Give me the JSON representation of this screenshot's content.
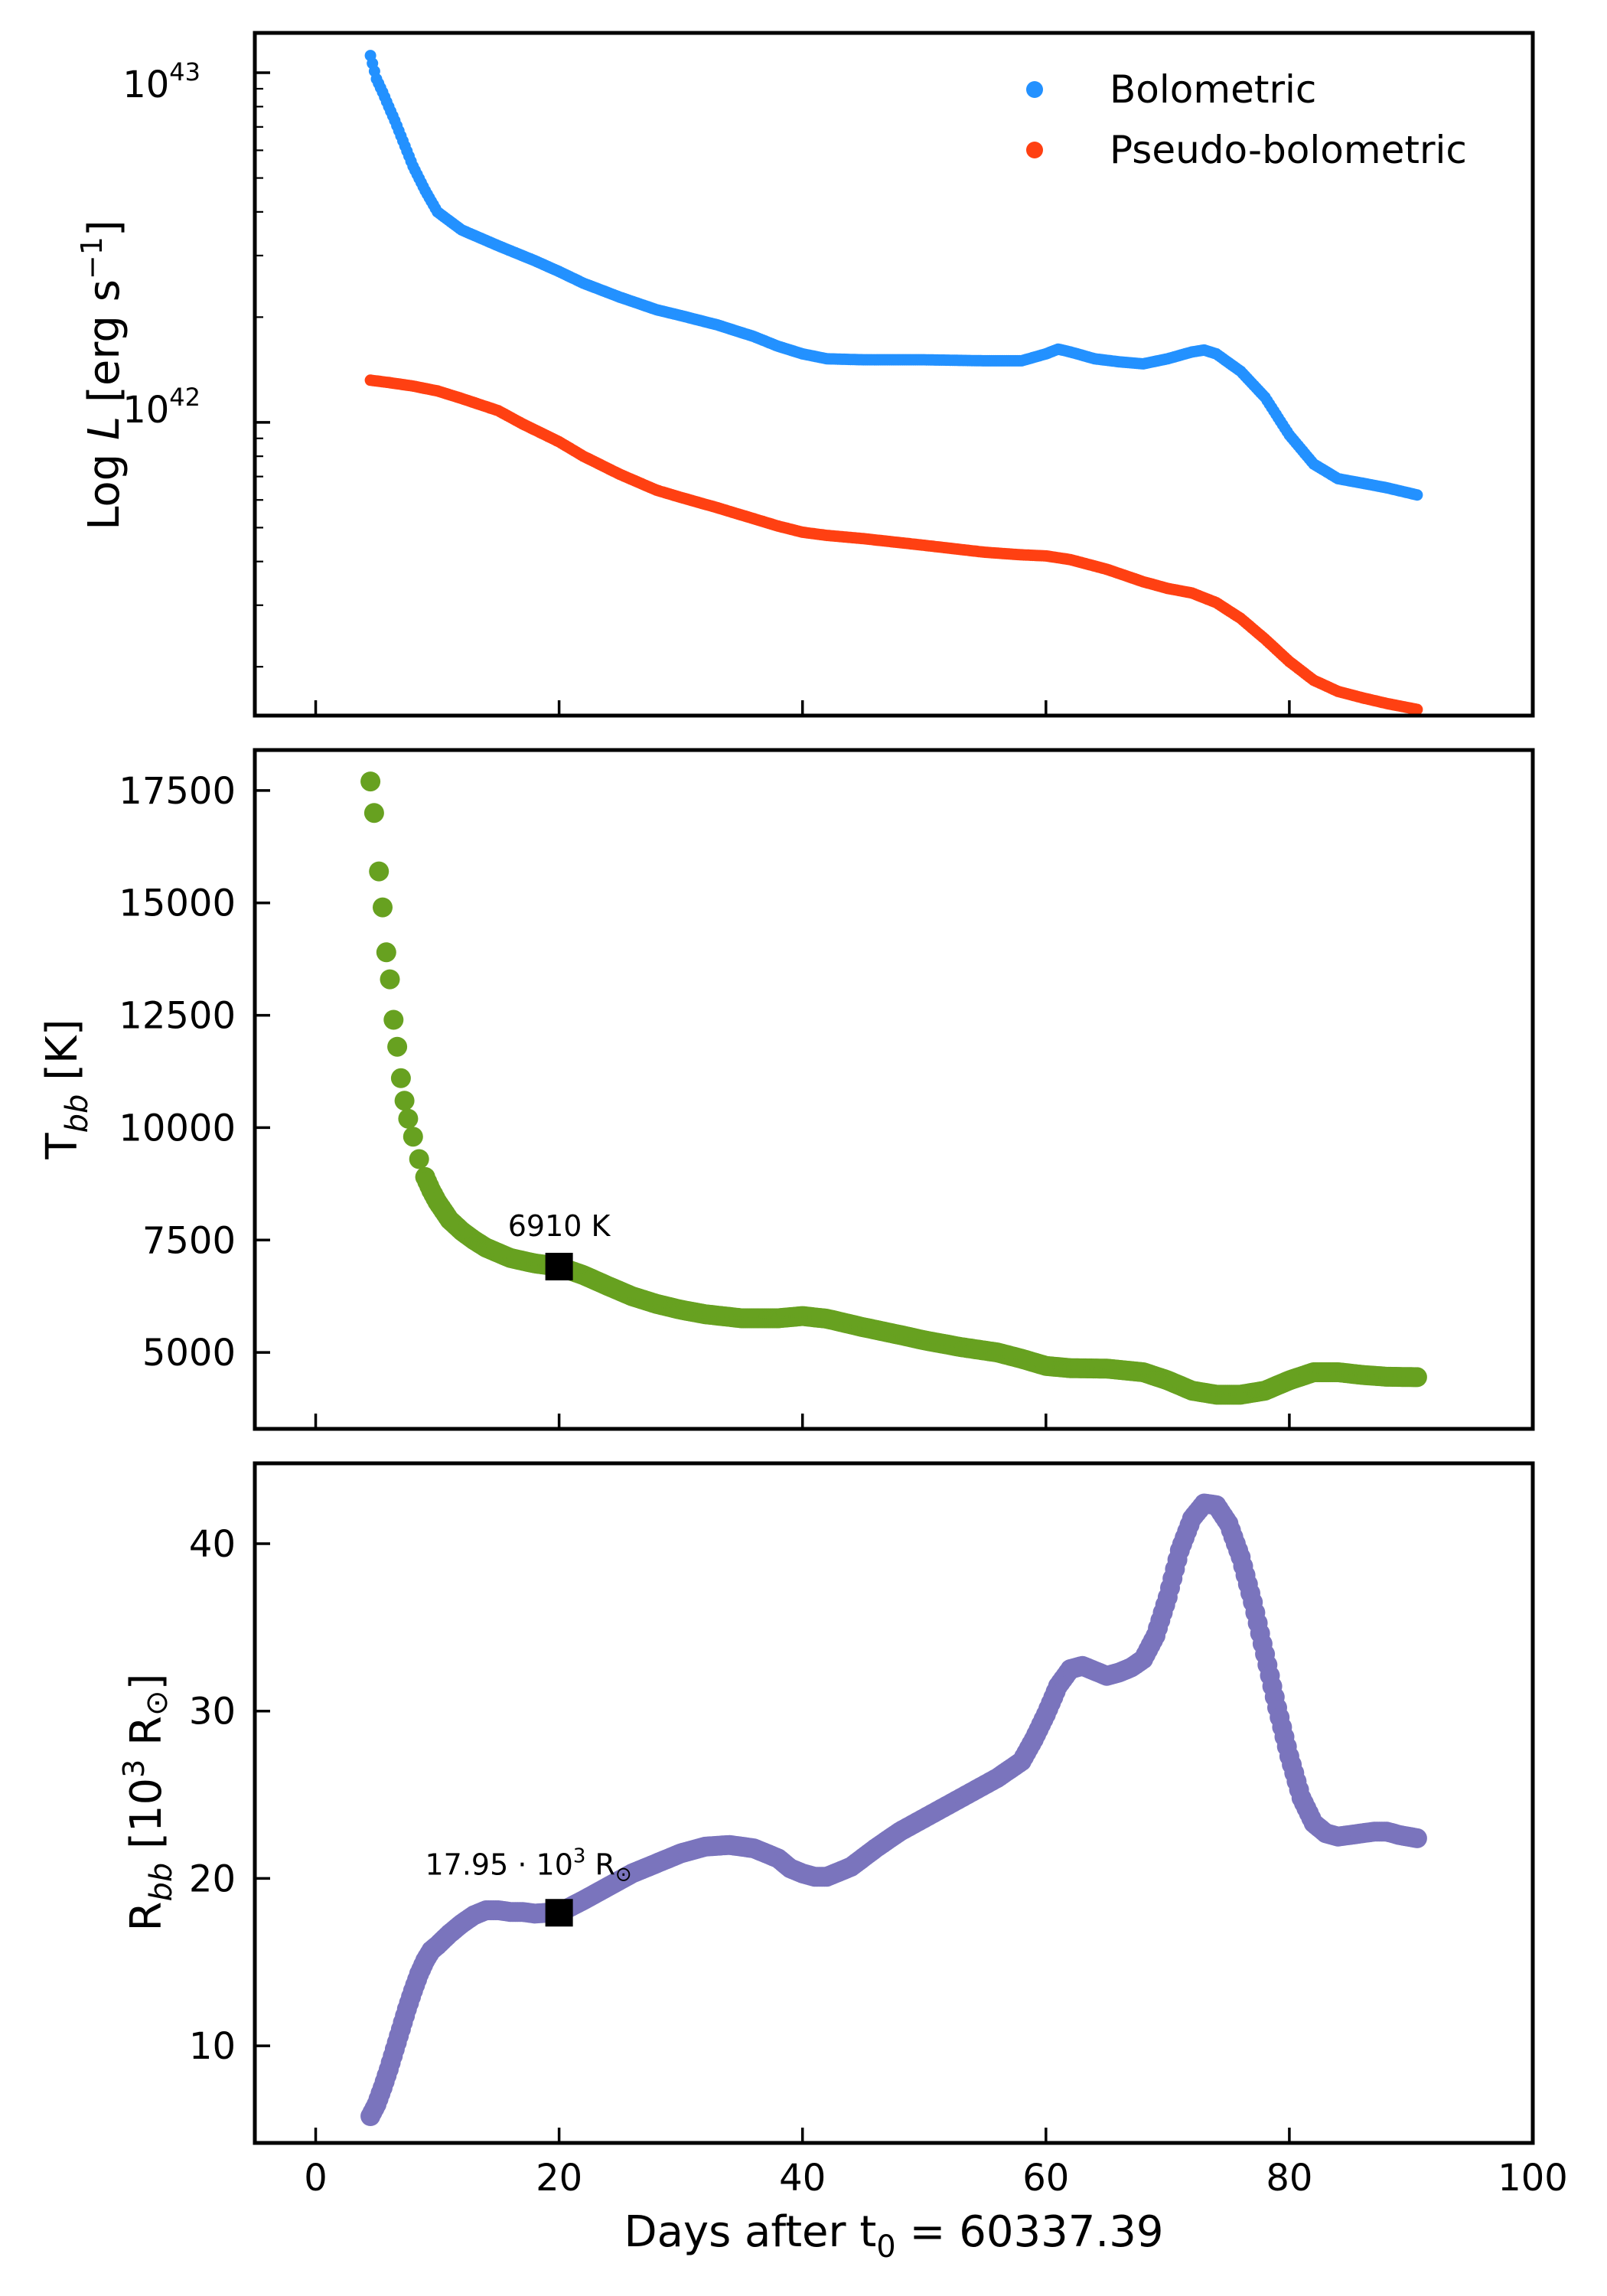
{
  "colors": {
    "bolometric": "#2391ff",
    "pseudo_bolometric": "#ff4012",
    "temperature": "#67a120",
    "radius": "#7a74bd",
    "marker": "#000000"
  },
  "chart_data": [
    {
      "id": "luminosity",
      "type": "scatter",
      "yscale": "log",
      "xlim": [
        -5,
        100
      ],
      "ylim": [
        1.45e+41,
        1.3e+43
      ],
      "ylabel": "Log L [erg s⁻¹]",
      "ylabel_parts": {
        "prefix": "Log ",
        "italic": "L",
        "unit": " [erg s",
        "sup": "−1",
        "close": "]"
      },
      "yticks": [
        {
          "value": 1e+42,
          "base": "10",
          "exp": "42"
        },
        {
          "value": 1e+43,
          "base": "10",
          "exp": "43"
        }
      ],
      "legend": {
        "location": "top-right",
        "entries": [
          "Bolometric",
          "Pseudo-bolometric"
        ]
      },
      "series": [
        {
          "name": "Bolometric",
          "x": [
            4.5,
            5.0,
            5.5,
            6.0,
            6.5,
            7.0,
            8.0,
            9.0,
            10.0,
            12.0,
            15.0,
            18.0,
            20.0,
            22.0,
            25.0,
            28.0,
            30.0,
            33.0,
            36.0,
            38.0,
            40.0,
            42.0,
            45.0,
            50.0,
            55.0,
            58.0,
            60.0,
            61.0,
            62.0,
            64.0,
            66.0,
            68.0,
            70.0,
            72.0,
            73.0,
            74.0,
            76.0,
            78.0,
            80.0,
            82.0,
            84.0,
            86.0,
            88.0,
            90.5
          ],
          "y": [
            1.12e+43,
            9.6e+42,
            8.8e+42,
            8e+42,
            7.3e+42,
            6.6e+42,
            5.4e+42,
            4.6e+42,
            4e+42,
            3.55e+42,
            3.2e+42,
            2.9e+42,
            2.7e+42,
            2.5e+42,
            2.28e+42,
            2.1e+42,
            2.02e+42,
            1.9e+42,
            1.76e+42,
            1.65e+42,
            1.57e+42,
            1.52e+42,
            1.51e+42,
            1.51e+42,
            1.5e+42,
            1.5e+42,
            1.57e+42,
            1.62e+42,
            1.59e+42,
            1.52e+42,
            1.49e+42,
            1.47e+42,
            1.52e+42,
            1.59e+42,
            1.61e+42,
            1.57e+42,
            1.4e+42,
            1.18e+42,
            9.2e+41,
            7.6e+41,
            6.9e+41,
            6.7e+41,
            6.5e+41,
            6.2e+41
          ]
        },
        {
          "name": "Pseudo-bolometric",
          "x": [
            4.5,
            6.0,
            8.0,
            10.0,
            12.0,
            15.0,
            17.0,
            20.0,
            22.0,
            25.0,
            28.0,
            30.0,
            33.0,
            36.0,
            38.0,
            40.0,
            42.0,
            45.0,
            50.0,
            55.0,
            58.0,
            60.0,
            62.0,
            65.0,
            68.0,
            70.0,
            72.0,
            74.0,
            76.0,
            78.0,
            80.0,
            82.0,
            84.0,
            86.0,
            88.0,
            90.5
          ],
          "y": [
            1.32e+42,
            1.3e+42,
            1.27e+42,
            1.23e+42,
            1.17e+42,
            1.08e+42,
            9.9e+41,
            8.8e+41,
            8e+41,
            7.1e+41,
            6.4e+41,
            6.1e+41,
            5.7e+41,
            5.3e+41,
            5.05e+41,
            4.85e+41,
            4.75e+41,
            4.65e+41,
            4.45e+41,
            4.25e+41,
            4.18e+41,
            4.15e+41,
            4.05e+41,
            3.8e+41,
            3.5e+41,
            3.35e+41,
            3.25e+41,
            3.05e+41,
            2.75e+41,
            2.4e+41,
            2.07e+41,
            1.83e+41,
            1.7e+41,
            1.63e+41,
            1.57e+41,
            1.51e+41
          ]
        }
      ]
    },
    {
      "id": "temperature",
      "type": "scatter",
      "xlim": [
        -5,
        100
      ],
      "ylim": [
        3300,
        18400
      ],
      "ylabel": "T_bb [K]",
      "ylabel_parts": {
        "base": "T",
        "sub": "bb",
        "unit": " [K]"
      },
      "yticks": [
        5000,
        7500,
        10000,
        12500,
        15000,
        17500
      ],
      "series": [
        {
          "name": "T_bb",
          "x": [
            4.5,
            4.8,
            5.2,
            5.5,
            5.8,
            6.1,
            6.4,
            6.7,
            7.0,
            7.3,
            7.6,
            8.0,
            8.5,
            9.0,
            9.5,
            10.0,
            11.0,
            12.0,
            13.0,
            14.0,
            16.0,
            18.0,
            20.0,
            22.0,
            24.0,
            26.0,
            28.0,
            30.0,
            32.0,
            35.0,
            38.0,
            40.0,
            42.0,
            45.0,
            48.0,
            50.0,
            53.0,
            56.0,
            58.0,
            60.0,
            62.0,
            65.0,
            68.0,
            70.0,
            72.0,
            74.0,
            76.0,
            78.0,
            80.0,
            82.0,
            84.0,
            86.0,
            88.0,
            90.5
          ],
          "y": [
            17700,
            17000,
            15700,
            14900,
            13900,
            13300,
            12400,
            11800,
            11100,
            10600,
            10200,
            9800,
            9300,
            8900,
            8600,
            8350,
            7950,
            7700,
            7500,
            7330,
            7100,
            6980,
            6910,
            6720,
            6480,
            6250,
            6080,
            5950,
            5850,
            5760,
            5760,
            5810,
            5750,
            5560,
            5390,
            5270,
            5120,
            5000,
            4860,
            4700,
            4650,
            4640,
            4560,
            4380,
            4150,
            4060,
            4060,
            4150,
            4380,
            4560,
            4560,
            4500,
            4460,
            4450
          ]
        }
      ],
      "annotation": {
        "x": 20,
        "y": 6910,
        "label": "6910 K"
      }
    },
    {
      "id": "radius",
      "type": "scatter",
      "xlim": [
        -5,
        100
      ],
      "ylim": [
        4.2,
        44.8
      ],
      "xlabel": "Days after t₀ = 60337.39",
      "xlabel_parts": {
        "base": "Days after t",
        "sub": "0",
        "rest": " = 60337.39"
      },
      "ylabel": "R_bb [10³ R⊙]",
      "ylabel_parts": {
        "base": "R",
        "sub": "bb",
        "unit": " [10",
        "sup": "3",
        "rest": " R",
        "sym": "⊙",
        "close": "]"
      },
      "xticks": [
        0,
        20,
        40,
        60,
        80,
        100
      ],
      "yticks": [
        10,
        20,
        30,
        40
      ],
      "series": [
        {
          "name": "R_bb",
          "x": [
            4.5,
            5.0,
            5.5,
            6.0,
            6.5,
            7.0,
            7.5,
            8.0,
            8.5,
            9.0,
            9.5,
            10.0,
            11.0,
            12.0,
            13.0,
            14.0,
            15.0,
            16.0,
            17.0,
            18.0,
            19.0,
            20.0,
            22.0,
            24.0,
            26.0,
            28.0,
            30.0,
            32.0,
            34.0,
            36.0,
            38.0,
            39.0,
            40.0,
            41.0,
            42.0,
            44.0,
            46.0,
            48.0,
            50.0,
            52.0,
            54.0,
            56.0,
            58.0,
            59.0,
            60.0,
            61.0,
            62.0,
            63.0,
            64.0,
            65.0,
            66.0,
            67.0,
            68.0,
            69.0,
            70.0,
            71.0,
            72.0,
            73.0,
            74.0,
            75.0,
            76.0,
            77.0,
            78.0,
            79.0,
            80.0,
            81.0,
            82.0,
            83.0,
            84.0,
            85.0,
            86.0,
            87.0,
            88.0,
            89.0,
            90.5
          ],
          "y": [
            5.8,
            6.5,
            7.5,
            8.6,
            9.8,
            11.0,
            12.2,
            13.3,
            14.3,
            15.1,
            15.7,
            16.0,
            16.7,
            17.3,
            17.8,
            18.1,
            18.1,
            18.0,
            18.0,
            17.9,
            17.95,
            17.95,
            18.7,
            19.5,
            20.3,
            20.9,
            21.5,
            21.9,
            22.0,
            21.8,
            21.2,
            20.6,
            20.3,
            20.1,
            20.1,
            20.7,
            21.8,
            22.8,
            23.6,
            24.4,
            25.2,
            26.0,
            27.0,
            28.3,
            29.8,
            31.5,
            32.5,
            32.7,
            32.4,
            32.1,
            32.3,
            32.6,
            33.1,
            34.5,
            36.8,
            39.6,
            41.5,
            42.4,
            42.3,
            41.2,
            39.2,
            36.5,
            33.4,
            30.2,
            27.3,
            24.8,
            23.3,
            22.7,
            22.5,
            22.6,
            22.7,
            22.8,
            22.8,
            22.6,
            22.4
          ]
        }
      ],
      "annotation": {
        "x": 20,
        "y": 17.95,
        "label_parts": {
          "num": "17.95 ·  10",
          "sup": "3",
          "rest": " R",
          "sym": "⊙"
        }
      }
    }
  ]
}
